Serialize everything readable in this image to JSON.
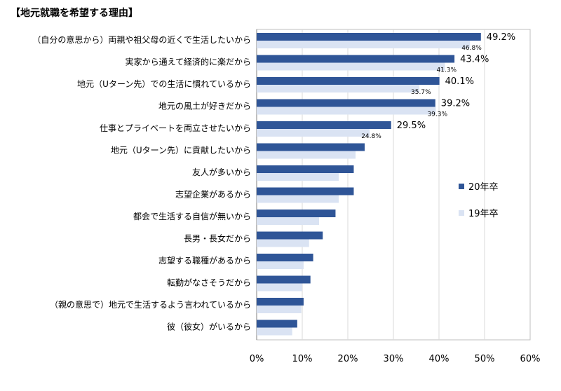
{
  "chart_data": {
    "type": "bar",
    "orientation": "horizontal",
    "title": "【地元就職を希望する理由】",
    "categories": [
      "（自分の意思から）両親や祖父母の近くで生活したいから",
      "実家から通えて経済的に楽だから",
      "地元（Uターン先）での生活に慣れているから",
      "地元の風土が好きだから",
      "仕事とプライベートを両立させたいから",
      "地元（Uターン先）に貢献したいから",
      "友人が多いから",
      "志望企業があるから",
      "都会で生活する自信が無いから",
      "長男・長女だから",
      "志望する職種があるから",
      "転勤がなさそうだから",
      "（親の意思で）地元で生活するよう言われているから",
      "彼（彼女）がいるから"
    ],
    "series": [
      {
        "name": "20年卒",
        "color": "#2f5597",
        "values": [
          49.2,
          43.4,
          40.1,
          39.2,
          29.5,
          23.7,
          21.3,
          21.3,
          17.3,
          14.5,
          12.4,
          11.8,
          10.3,
          8.9
        ],
        "data_labels": [
          "49.2%",
          "43.4%",
          "40.1%",
          "39.2%",
          "29.5%",
          "",
          "",
          "",
          "",
          "",
          "",
          "",
          "",
          ""
        ]
      },
      {
        "name": "19年卒",
        "color": "#dae3f3",
        "values": [
          46.8,
          41.3,
          35.7,
          39.3,
          24.8,
          21.7,
          18.0,
          18.0,
          13.7,
          11.5,
          10.3,
          10.0,
          9.8,
          7.8
        ],
        "data_labels": [
          "46.8%",
          "41.3%",
          "35.7%",
          "39.3%",
          "24.8%",
          "",
          "",
          "",
          "",
          "",
          "",
          "",
          "",
          ""
        ]
      }
    ],
    "xlim": [
      0,
      60
    ],
    "xticks": [
      0,
      10,
      20,
      30,
      40,
      50,
      60
    ],
    "xtick_labels": [
      "0%",
      "10%",
      "20%",
      "30%",
      "40%",
      "50%",
      "60%"
    ],
    "xlabel": "",
    "ylabel": "",
    "grid": true,
    "legend_position": "right"
  }
}
